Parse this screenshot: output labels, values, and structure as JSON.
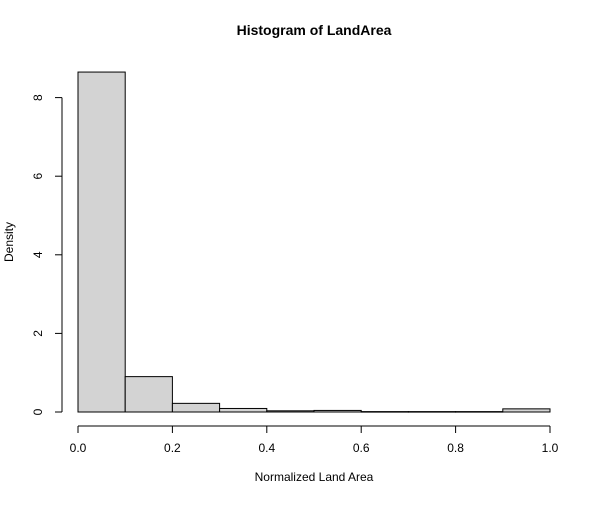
{
  "chart_data": {
    "type": "bar",
    "title": "Histogram of LandArea",
    "xlabel": "Normalized Land Area",
    "ylabel": "Density",
    "x_bin_edges": [
      0.0,
      0.1,
      0.2,
      0.3,
      0.4,
      0.5,
      0.6,
      0.7,
      0.8,
      0.9,
      1.0
    ],
    "values": [
      8.65,
      0.9,
      0.22,
      0.09,
      0.03,
      0.04,
      0.01,
      0.01,
      0.01,
      0.08
    ],
    "x_ticks": [
      "0.0",
      "0.2",
      "0.4",
      "0.6",
      "0.8",
      "1.0"
    ],
    "x_tick_values": [
      0.0,
      0.2,
      0.4,
      0.6,
      0.8,
      1.0
    ],
    "y_ticks": [
      "0",
      "2",
      "4",
      "6",
      "8"
    ],
    "y_tick_values": [
      0,
      2,
      4,
      6,
      8
    ],
    "xlim": [
      0.0,
      1.0
    ],
    "ylim": [
      0,
      8
    ],
    "grid": false,
    "bar_color": "#d3d3d3",
    "edge_color": "#000000"
  }
}
